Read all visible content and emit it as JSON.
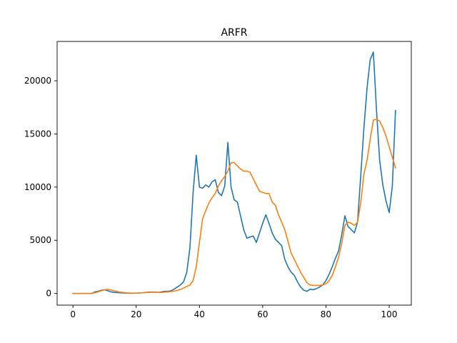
{
  "chart_data": {
    "type": "line",
    "title": "ARFR",
    "xlabel": "",
    "ylabel": "",
    "xlim": [
      -5,
      107
    ],
    "ylim": [
      -1100,
      23700
    ],
    "xticks": [
      0,
      20,
      40,
      60,
      80,
      100
    ],
    "yticks": [
      0,
      5000,
      10000,
      15000,
      20000
    ],
    "grid": false,
    "series": [
      {
        "color": "#1f77b4",
        "x": [
          0,
          1,
          2,
          3,
          4,
          5,
          6,
          7,
          8,
          9,
          10,
          11,
          12,
          13,
          14,
          15,
          16,
          17,
          18,
          19,
          20,
          21,
          22,
          23,
          24,
          25,
          26,
          27,
          28,
          29,
          30,
          31,
          32,
          33,
          34,
          35,
          36,
          37,
          38,
          39,
          40,
          41,
          42,
          43,
          44,
          45,
          46,
          47,
          48,
          49,
          50,
          51,
          52,
          53,
          54,
          55,
          56,
          57,
          58,
          59,
          60,
          61,
          62,
          63,
          64,
          65,
          66,
          67,
          68,
          69,
          70,
          71,
          72,
          73,
          74,
          75,
          76,
          77,
          78,
          79,
          80,
          81,
          82,
          83,
          84,
          85,
          86,
          87,
          88,
          89,
          90,
          91,
          92,
          93,
          94,
          95,
          96,
          97,
          98,
          99,
          100,
          101,
          102
        ],
        "y": [
          0,
          0,
          0,
          0,
          0,
          0,
          0,
          150,
          200,
          300,
          350,
          250,
          150,
          100,
          80,
          60,
          40,
          30,
          20,
          20,
          30,
          40,
          60,
          100,
          120,
          130,
          120,
          100,
          150,
          200,
          200,
          250,
          400,
          600,
          800,
          1100,
          2000,
          4300,
          9500,
          13000,
          10000,
          9900,
          10200,
          10000,
          10500,
          10700,
          9500,
          9200,
          10100,
          14200,
          10000,
          8800,
          8600,
          7300,
          6000,
          5200,
          5300,
          5400,
          4800,
          5700,
          6600,
          7400,
          6600,
          5700,
          5100,
          4800,
          4500,
          3200,
          2500,
          2000,
          1700,
          1100,
          600,
          300,
          200,
          400,
          350,
          450,
          600,
          800,
          1200,
          1800,
          2500,
          3300,
          4000,
          5500,
          7300,
          6300,
          6000,
          5700,
          6700,
          11000,
          15500,
          19300,
          22000,
          22700,
          17200,
          12500,
          10200,
          8700,
          7600,
          10100,
          17200
        ]
      },
      {
        "color": "#ff7f0e",
        "x": [
          0,
          1,
          2,
          3,
          4,
          5,
          6,
          7,
          8,
          9,
          10,
          11,
          12,
          13,
          14,
          15,
          16,
          17,
          18,
          19,
          20,
          21,
          22,
          23,
          24,
          25,
          26,
          27,
          28,
          29,
          30,
          31,
          32,
          33,
          34,
          35,
          36,
          37,
          38,
          39,
          40,
          41,
          42,
          43,
          44,
          45,
          46,
          47,
          48,
          49,
          50,
          51,
          52,
          53,
          54,
          55,
          56,
          57,
          58,
          59,
          60,
          61,
          62,
          63,
          64,
          65,
          66,
          67,
          68,
          69,
          70,
          71,
          72,
          73,
          74,
          75,
          76,
          77,
          78,
          79,
          80,
          81,
          82,
          83,
          84,
          85,
          86,
          87,
          88,
          89,
          90,
          91,
          92,
          93,
          94,
          95,
          96,
          97,
          98,
          99,
          100,
          101,
          102
        ],
        "y": [
          0,
          0,
          0,
          0,
          0,
          0,
          20,
          60,
          150,
          250,
          350,
          380,
          330,
          250,
          180,
          120,
          80,
          50,
          40,
          30,
          30,
          40,
          60,
          80,
          100,
          110,
          110,
          100,
          100,
          120,
          150,
          180,
          220,
          280,
          380,
          500,
          650,
          800,
          1200,
          2500,
          4800,
          7000,
          7800,
          8500,
          9000,
          9400,
          10100,
          10600,
          11000,
          11500,
          12300,
          12300,
          12000,
          11700,
          11500,
          11500,
          11400,
          10800,
          10200,
          9600,
          9500,
          9400,
          9400,
          8600,
          8300,
          7400,
          6700,
          6000,
          4900,
          3800,
          3200,
          2600,
          2000,
          1500,
          1000,
          800,
          750,
          750,
          750,
          800,
          900,
          1200,
          1700,
          2500,
          3400,
          4700,
          6400,
          6700,
          6600,
          6400,
          6700,
          8500,
          11200,
          12500,
          14500,
          16300,
          16400,
          16200,
          15600,
          14800,
          13800,
          12800,
          11800
        ]
      }
    ]
  }
}
